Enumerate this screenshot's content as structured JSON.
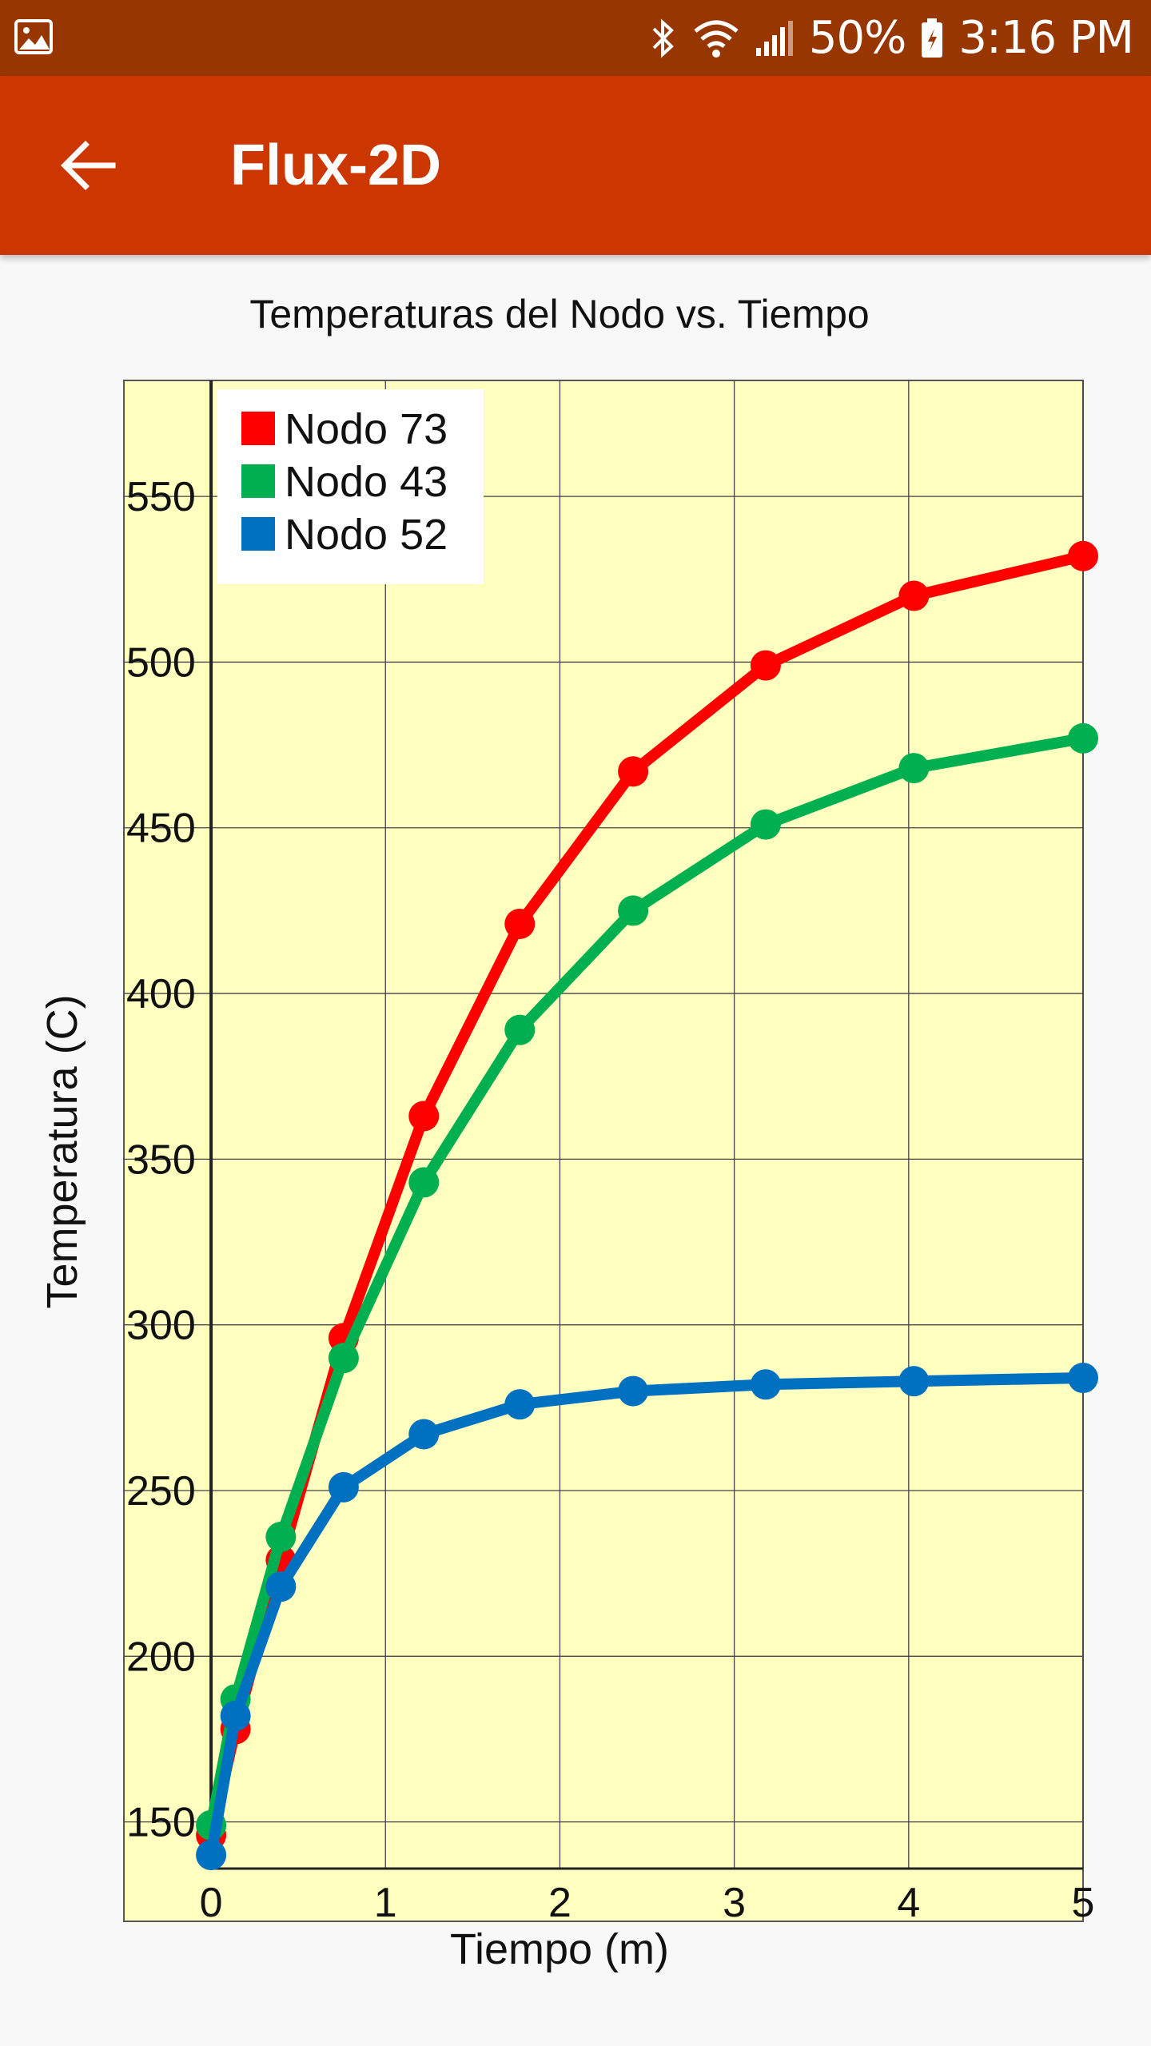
{
  "status_bar": {
    "battery": "50%",
    "time": "3:16 PM",
    "icons": [
      "gallery-icon",
      "bluetooth-icon",
      "wifi-icon",
      "signal-icon",
      "battery-icon"
    ]
  },
  "app_bar": {
    "title": "Flux-2D",
    "back_icon": "arrow-back-icon",
    "color": "#cc3600",
    "status_color": "#983600"
  },
  "chart_data": {
    "type": "line",
    "title": "Temperaturas del Nodo vs. Tiempo",
    "xlabel": "Tiempo (m)",
    "ylabel": "Temperatura (C)",
    "xlim": [
      -0.5,
      5
    ],
    "ylim": [
      120,
      585
    ],
    "xticks": [
      0,
      1,
      2,
      3,
      4,
      5
    ],
    "yticks": [
      150,
      200,
      250,
      300,
      350,
      400,
      450,
      500,
      550
    ],
    "grid": true,
    "legend_position": "top-left",
    "plot_background": "#ffffc0",
    "x": [
      0,
      0.14,
      0.4,
      0.76,
      1.22,
      1.77,
      2.42,
      3.18,
      4.03,
      5.0
    ],
    "series": [
      {
        "name": "Nodo  73",
        "color": "#ff0000",
        "values": [
          146,
          178,
          229,
          296,
          363,
          421,
          467,
          499,
          520,
          532
        ]
      },
      {
        "name": "Nodo  43",
        "color": "#00b050",
        "values": [
          149,
          187,
          236,
          290,
          343,
          389,
          425,
          451,
          468,
          477
        ]
      },
      {
        "name": "Nodo  52",
        "color": "#0070c0",
        "values": [
          140,
          182,
          221,
          251,
          267,
          276,
          280,
          282,
          283,
          284
        ]
      }
    ]
  }
}
